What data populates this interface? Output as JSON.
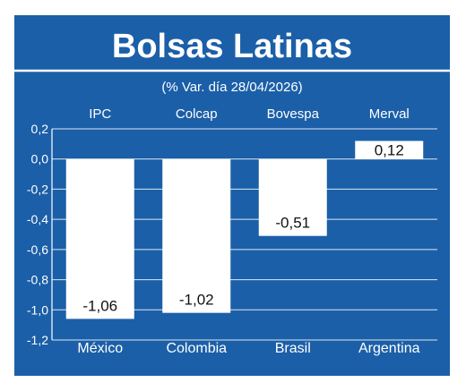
{
  "chart_data": {
    "type": "bar",
    "title": "Bolsas Latinas",
    "subtitle": "(% Var. día 28/04/2026)",
    "index_labels": [
      "IPC",
      "Colcap",
      "Bovespa",
      "Merval"
    ],
    "categories": [
      "México",
      "Colombia",
      "Brasil",
      "Argentina"
    ],
    "values": [
      -1.06,
      -1.02,
      -0.51,
      0.12
    ],
    "value_labels": [
      "-1,06",
      "-1,02",
      "-0,51",
      "0,12"
    ],
    "ylim": [
      -1.2,
      0.2
    ],
    "y_ticks": [
      0.2,
      0.0,
      -0.2,
      -0.4,
      -0.6,
      -0.8,
      -1.0,
      -1.2
    ],
    "y_tick_labels": [
      "0,2",
      "0,0",
      "-0,2",
      "-0,4",
      "-0,6",
      "-0,8",
      "-1,0",
      "-1,2"
    ],
    "grid": true,
    "legend": "none",
    "colors": {
      "background": "#1b5fa8",
      "bar": "#ffffff",
      "grid": "#ffffff",
      "text_on_blue": "#ffffff",
      "text_on_bar": "#111111"
    }
  }
}
